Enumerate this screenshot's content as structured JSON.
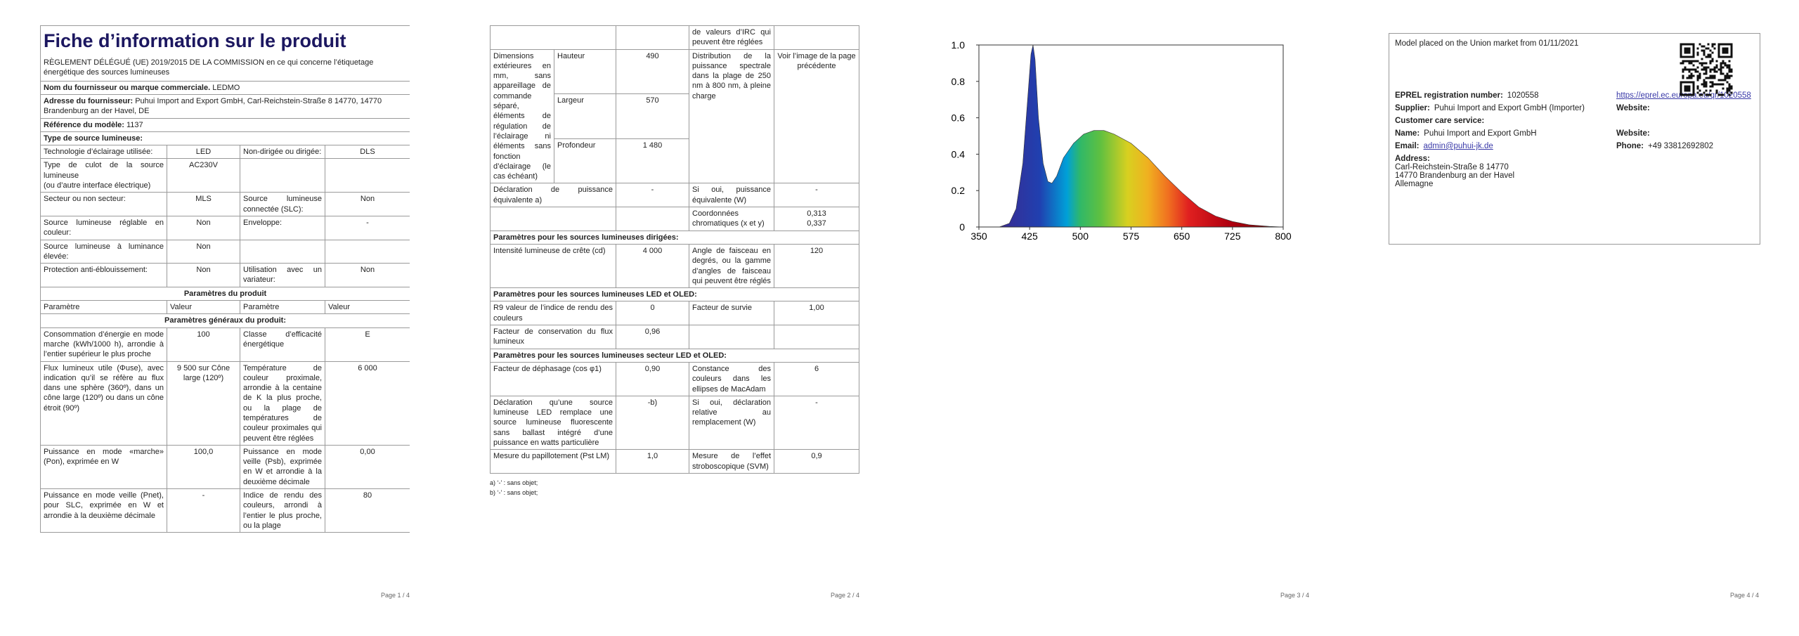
{
  "page1": {
    "title": "Fiche d’information sur le produit",
    "regulation": "RÈGLEMENT DÉLÉGUÉ (UE) 2019/2015 DE LA COMMISSION en ce qui concerne l’étiquetage énergétique des sources lumineuses",
    "fields": [
      {
        "label": "Nom du fournisseur ou marque commerciale.",
        "value": "LEDMO"
      },
      {
        "label": "Adresse du fournisseur:",
        "value": "Puhui Import and Export GmbH, Carl-Reichstein-Straße 8 14770, 14770 Brandenburg an der Havel, DE"
      },
      {
        "label": "Référence du modèle:",
        "value": "1137"
      }
    ],
    "type_heading": "Type de source lumineuse:",
    "type_rows": [
      [
        "Technologie d’éclairage utilisée:",
        "LED",
        "Non-dirigée ou dirigée:",
        "DLS"
      ],
      [
        "Type de culot de la source lumineuse\n(ou d’autre interface électrique)",
        "AC230V",
        null,
        null
      ],
      [
        "Secteur ou non secteur:",
        "MLS",
        "Source lumineuse connectée (SLC):",
        "Non"
      ],
      [
        "Source lumineuse réglable en couleur:",
        "Non",
        "Enveloppe:",
        "-"
      ],
      [
        "Source lumineuse à luminance élevée:",
        "Non",
        null,
        null
      ],
      [
        "Protection anti-éblouissement:",
        "Non",
        "Utilisation avec un variateur:",
        "Non"
      ]
    ],
    "product_heading": "Paramètres du produit",
    "column_headers": [
      "Paramètre",
      "Valeur",
      "Paramètre",
      "Valeur"
    ],
    "general_heading": "Paramètres généraux du produit:",
    "general_rows": [
      [
        "Consommation d’énergie en mode marche (kWh/1000 h), arrondie à l’entier supérieur le plus proche",
        "100",
        "Classe d’efficacité énergétique",
        "E"
      ],
      [
        "Flux lumineux utile (Φuse), avec indication qu’il se réfère au flux dans une sphère (360º), dans un cône large (120º) ou dans un cône étroit (90º)",
        "9 500 sur Cône large (120º)",
        "Température de couleur proximale, arrondie à la centaine de K la plus proche, ou la plage de températures de couleur proximales qui peuvent être réglées",
        "6 000"
      ],
      [
        "Puissance en mode «marche» (Pon), exprimée en W",
        "100,0",
        "Puissance en mode veille (Psb), exprimée en W et arrondie à la deuxième décimale",
        "0,00"
      ],
      [
        "Puissance en mode veille (Pnet), pour SLC, exprimée en W et arrondie à la deuxième décimale",
        "-",
        "Indice de rendu des couleurs, arrondi à l’entier le plus proche, ou la plage",
        "80"
      ]
    ],
    "page_number": "Page 1 / 4"
  },
  "page2": {
    "continuation": "de valeurs d’IRC qui peuvent être réglées",
    "dimensions": {
      "label": "Dimensions extérieures en mm, sans appareillage de commande séparé, éléments de régulation de l’éclairage ni éléments sans fonction d’éclairage (le cas échéant)",
      "parts": [
        {
          "name": "Hauteur",
          "value": "490"
        },
        {
          "name": "Largeur",
          "value": "570"
        },
        {
          "name": "Profondeur",
          "value": "1 480"
        }
      ],
      "param": "Distribution de la puissance spectrale dans la plage de 250 nm à 800 nm, à pleine charge",
      "value": "Voir l’image de la page précédente"
    },
    "sections": [
      {
        "rows": [
          [
            "Déclaration de puissance équivalente a)",
            "-",
            "Si oui, puissance équivalente (W)",
            "-"
          ],
          [
            null,
            null,
            "Coordonnées chromatiques (x et y)",
            "0,313\n0,337"
          ]
        ]
      },
      {
        "heading": "Paramètres pour les sources lumineuses dirigées:",
        "rows": [
          [
            "Intensité lumineuse de crête (cd)",
            "4 000",
            "Angle de faisceau en degrés, ou la gamme d’angles de faisceau qui peuvent être réglés",
            "120"
          ]
        ]
      },
      {
        "heading": "Paramètres pour les sources lumineuses LED et OLED:",
        "rows": [
          [
            "R9 valeur de l’indice de rendu des couleurs",
            "0",
            "Facteur de survie",
            "1,00"
          ],
          [
            "Facteur de conservation du flux lumineux",
            "0,96",
            null,
            null
          ]
        ]
      },
      {
        "heading": "Paramètres pour les sources lumineuses secteur LED et OLED:",
        "rows": [
          [
            "Facteur de déphasage (cos φ1)",
            "0,90",
            "Constance des couleurs dans les ellipses de MacAdam",
            "6"
          ],
          [
            "Déclaration qu’une source lumineuse LED remplace une source lumineuse fluorescente sans ballast intégré d’une puissance en watts particulière",
            "-b)",
            "Si oui, déclaration relative au remplacement (W)",
            "-"
          ],
          [
            "Mesure du papillotement (Pst LM)",
            "1,0",
            "Mesure de l’effet stroboscopique (SVM)",
            "0,9"
          ]
        ]
      }
    ],
    "footnotes": [
      "a) ‘-’ : sans objet;",
      "b) ‘-’ : sans objet;"
    ],
    "page_number": "Page 2 / 4"
  },
  "page3": {
    "spectrum": {
      "xlim": [
        350,
        800
      ],
      "ylim": [
        0,
        1
      ],
      "xticks": [
        350,
        425,
        500,
        575,
        650,
        725,
        800
      ],
      "yticks": [
        0,
        0.2,
        0.4,
        0.6,
        0.8,
        {
          "value": 1,
          "label": "1.0"
        }
      ]
    },
    "page_number": "Page 3 / 4"
  },
  "page4": {
    "model_placed": "Model placed on the Union market from 01/11/2021",
    "rows": [
      [
        {
          "label": "EPREL registration number:",
          "value": "1020558"
        },
        {
          "link": "https://eprel.ec.europa.eu/qr/1020558"
        }
      ],
      [
        {
          "label": "Supplier:",
          "value": "Puhui Import and Export GmbH (Importer)"
        },
        {
          "label": "Website:"
        }
      ],
      [
        {
          "label": "Customer care service:"
        }
      ],
      [
        {
          "label": "Name:",
          "value": "Puhui Import and Export GmbH"
        },
        {
          "label": "Website:"
        }
      ],
      [
        {
          "label": "Email:",
          "link": "admin@puhui-jk.de"
        },
        {
          "label": "Phone:",
          "value": "+49 33812692802"
        }
      ],
      [
        {
          "label": "Address:",
          "lines": [
            "Carl-Reichstein-Straße 8 14770",
            "14770 Brandenburg an der Havel",
            "Allemagne"
          ]
        }
      ]
    ],
    "page_number": "Page 4 / 4"
  }
}
